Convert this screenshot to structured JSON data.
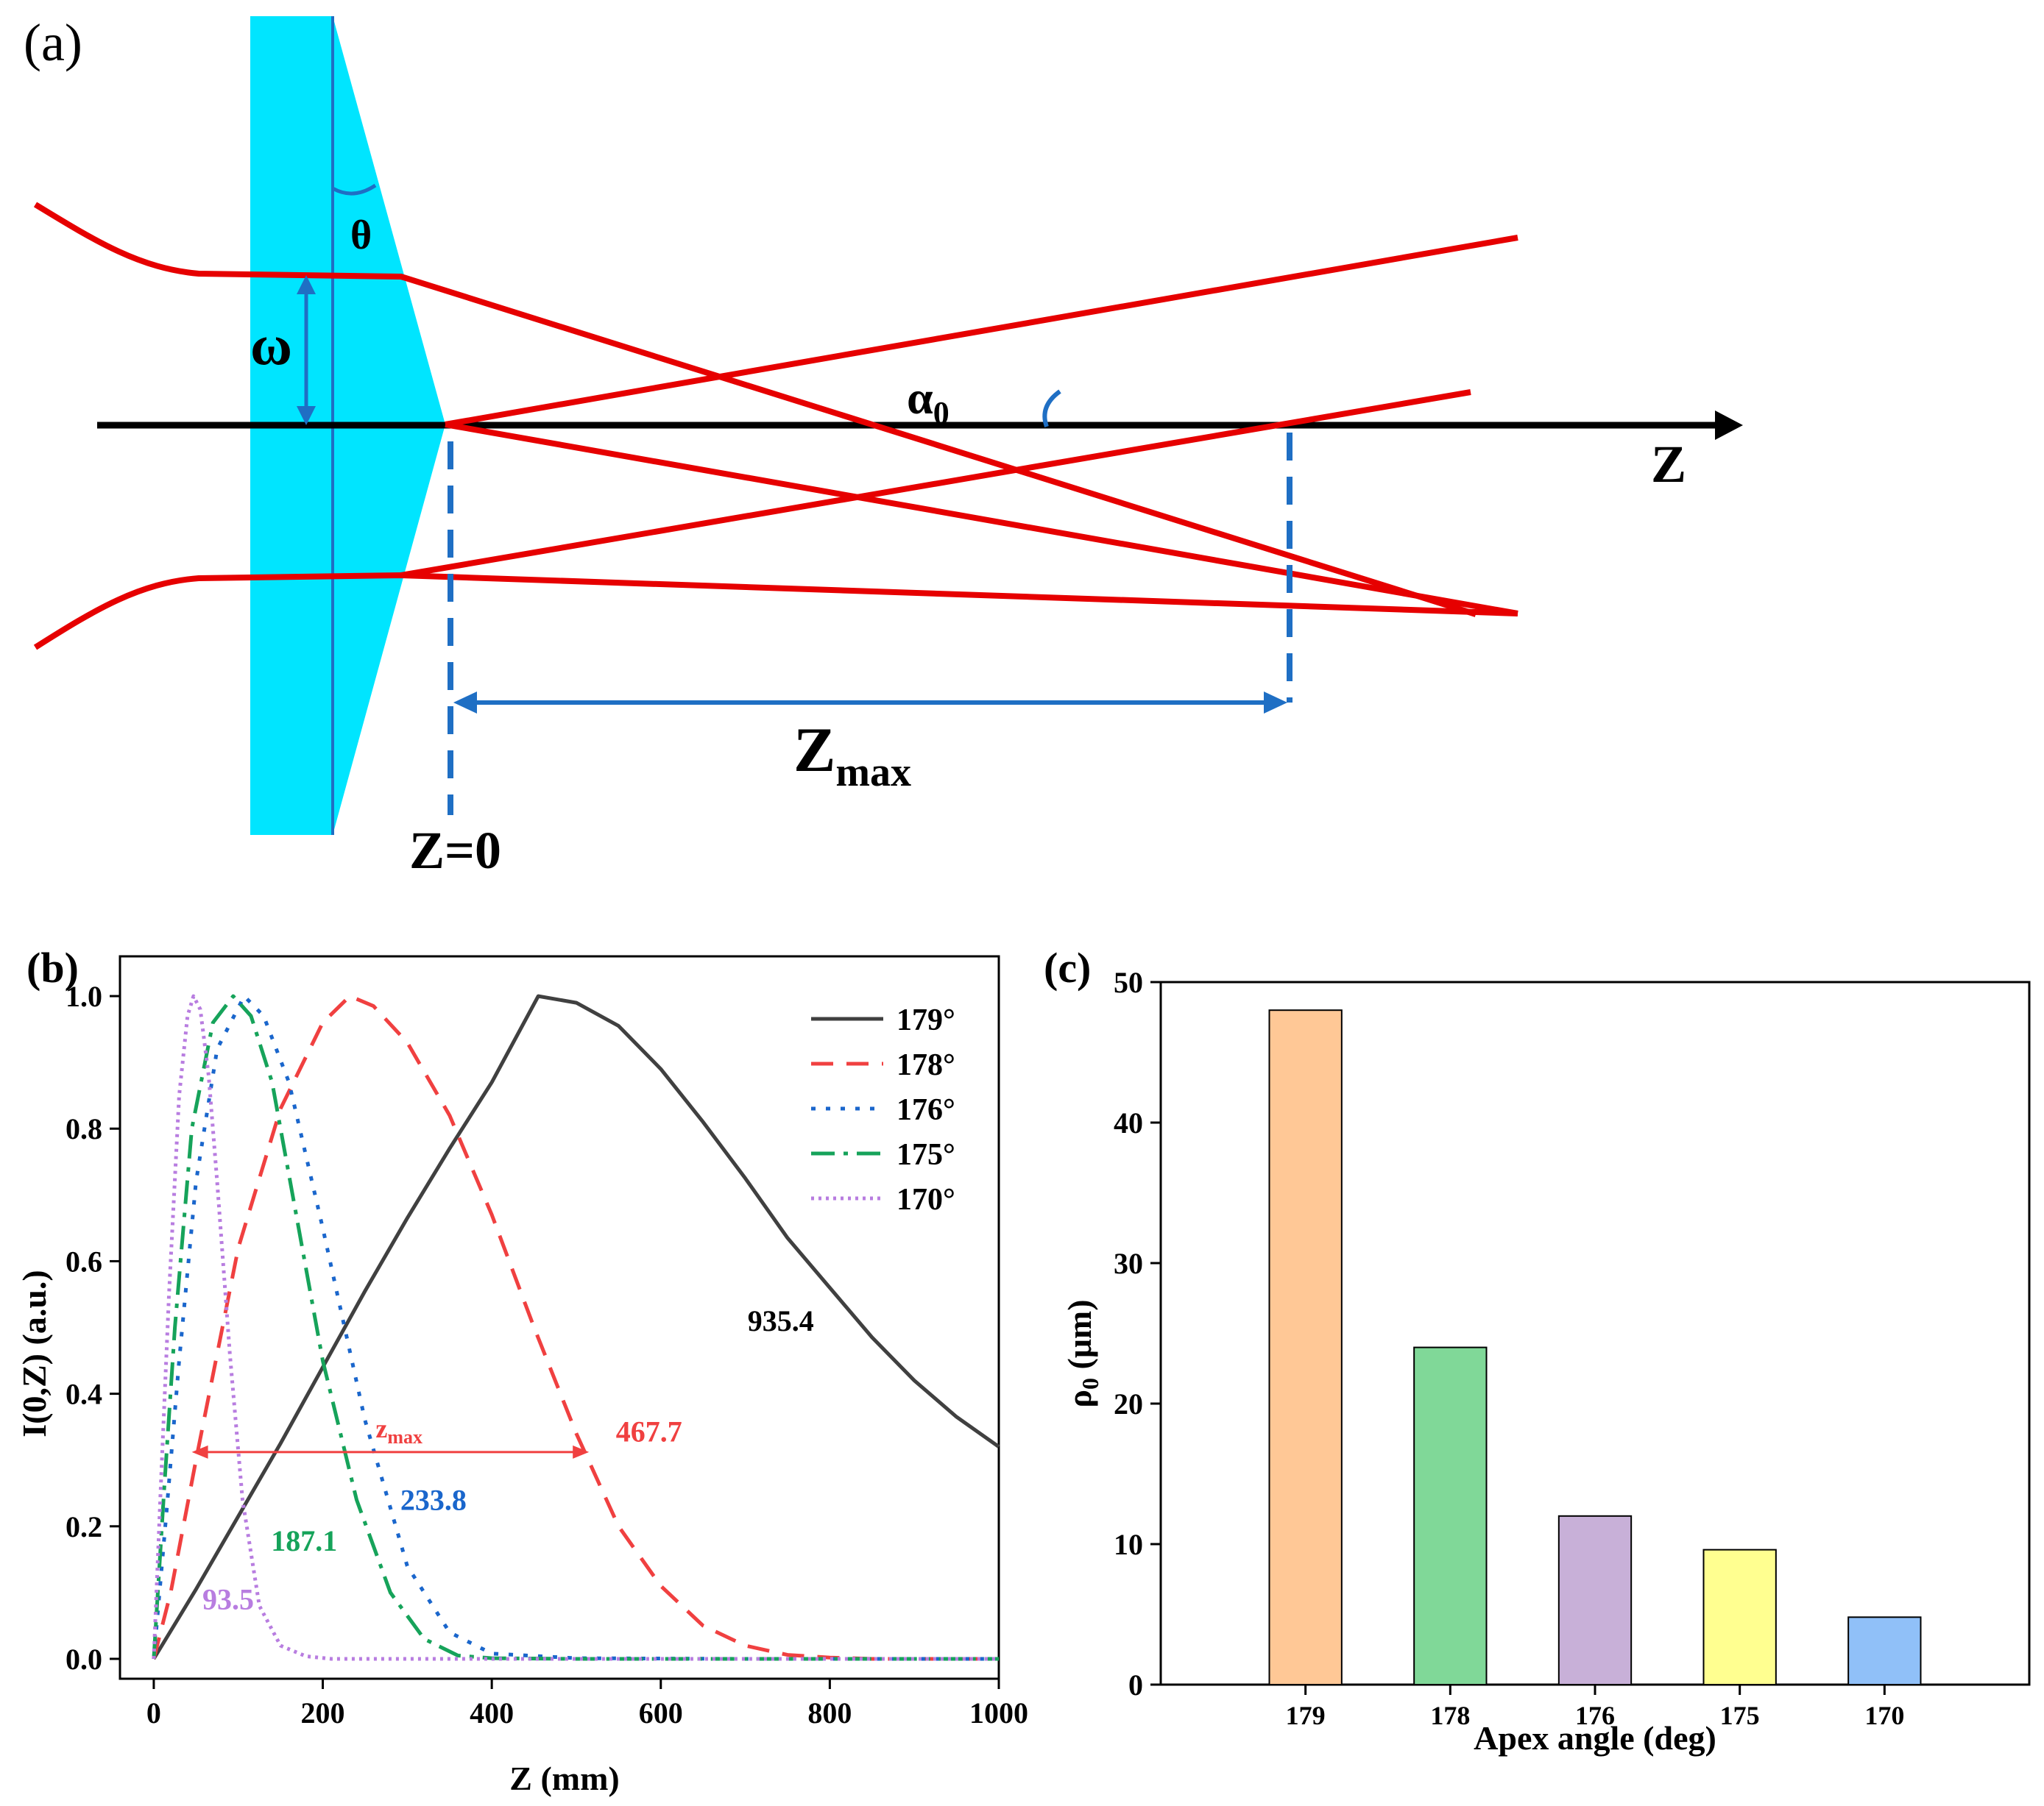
{
  "panel_a": {
    "label": "(a)",
    "theta_label": "θ",
    "omega_label": "ω",
    "alpha_label": "α",
    "alpha_sub": "0",
    "axis_label": "Z",
    "z0_label": "Z=0",
    "zmax_label": "Z",
    "zmax_sub": "max",
    "colors": {
      "axicon": "#00e5ff",
      "beam": "#e60000",
      "annotation": "#1f6fc4",
      "axis": "#000000"
    }
  },
  "chart_data": [
    {
      "id": "b",
      "panel_label": "(b)",
      "type": "line",
      "title": "",
      "xlabel": "Z (mm)",
      "ylabel": "I(0,Z) (a.u.)",
      "xlim": [
        -40,
        1000
      ],
      "ylim": [
        -0.03,
        1.06
      ],
      "xticks": [
        0,
        200,
        400,
        600,
        800,
        1000
      ],
      "xtick_labels": [
        "0",
        "200",
        "400",
        "600",
        "800",
        "1000"
      ],
      "yticks": [
        0.0,
        0.2,
        0.4,
        0.6,
        0.8,
        1.0
      ],
      "ytick_labels": [
        "0.0",
        "0.2",
        "0.4",
        "0.6",
        "0.8",
        "1.0"
      ],
      "legend_position": "top-right",
      "series": [
        {
          "name": "179°",
          "color": "#404040",
          "dash": "solid",
          "zmax": 935.4,
          "peak": 455,
          "x": [
            0,
            50,
            100,
            150,
            200,
            250,
            300,
            350,
            400,
            455,
            500,
            550,
            600,
            650,
            700,
            750,
            800,
            850,
            900,
            950,
            1000
          ],
          "values": [
            0,
            0.105,
            0.215,
            0.325,
            0.44,
            0.555,
            0.665,
            0.77,
            0.87,
            1.0,
            0.99,
            0.955,
            0.89,
            0.81,
            0.725,
            0.635,
            0.56,
            0.485,
            0.42,
            0.365,
            0.32
          ]
        },
        {
          "name": "178°",
          "color": "#f04040",
          "dash": "dash",
          "zmax": 467.7,
          "peak": 232,
          "x": [
            0,
            20,
            50,
            100,
            150,
            200,
            232,
            260,
            300,
            350,
            400,
            450,
            500,
            550,
            600,
            650,
            700,
            750,
            800,
            850,
            900,
            1000
          ],
          "values": [
            0,
            0.1,
            0.3,
            0.62,
            0.83,
            0.96,
            1.0,
            0.985,
            0.93,
            0.82,
            0.67,
            0.5,
            0.34,
            0.2,
            0.11,
            0.05,
            0.02,
            0.006,
            0.002,
            0.0,
            0.0,
            0.0
          ]
        },
        {
          "name": "176°",
          "color": "#1a66cc",
          "dash": "dot",
          "zmax": 233.8,
          "peak": 107,
          "x": [
            0,
            15,
            30,
            50,
            75,
            107,
            130,
            160,
            200,
            250,
            300,
            350,
            400,
            500,
            700,
            1000
          ],
          "values": [
            0,
            0.22,
            0.45,
            0.72,
            0.92,
            1.0,
            0.97,
            0.87,
            0.65,
            0.36,
            0.14,
            0.04,
            0.008,
            0.001,
            0.0,
            0.0
          ]
        },
        {
          "name": "175°",
          "color": "#16a35a",
          "dash": "dashdot",
          "zmax": 187.1,
          "peak": 94,
          "x": [
            0,
            12,
            25,
            45,
            70,
            94,
            115,
            140,
            170,
            200,
            240,
            280,
            320,
            360,
            400,
            500,
            700,
            1000
          ],
          "values": [
            0,
            0.25,
            0.5,
            0.8,
            0.96,
            1.0,
            0.97,
            0.87,
            0.66,
            0.45,
            0.24,
            0.1,
            0.03,
            0.005,
            0.001,
            0.0,
            0.0,
            0.0
          ]
        },
        {
          "name": "170°",
          "color": "#b87de0",
          "dash": "shortdot",
          "zmax": 93.5,
          "peak": 47,
          "x": [
            0,
            8,
            18,
            30,
            40,
            47,
            55,
            65,
            75,
            90,
            105,
            125,
            150,
            180,
            210,
            260,
            400,
            1000
          ],
          "values": [
            0,
            0.25,
            0.55,
            0.85,
            0.97,
            1.0,
            0.98,
            0.88,
            0.72,
            0.46,
            0.24,
            0.08,
            0.02,
            0.004,
            0.0,
            0.0,
            0.0,
            0.0
          ]
        }
      ],
      "annotations": [
        {
          "text": "935.4",
          "x": 742,
          "y": 0.495,
          "color": "#000000"
        },
        {
          "text": "467.7",
          "x": 586,
          "y": 0.328,
          "color": "#f04040"
        },
        {
          "text": "233.8",
          "x": 331,
          "y": 0.225,
          "color": "#1a66cc"
        },
        {
          "text": "187.1",
          "x": 178,
          "y": 0.163,
          "color": "#16a35a"
        },
        {
          "text": "93.5",
          "x": 88,
          "y": 0.075,
          "color": "#b87de0"
        }
      ],
      "zmax_arrow": {
        "label": "z",
        "label_sub": "max",
        "x_start": 45,
        "x_end": 515,
        "y": 0.312,
        "color": "#f04040"
      }
    },
    {
      "id": "c",
      "panel_label": "(c)",
      "type": "bar",
      "title": "",
      "xlabel": "Apex angle (deg)",
      "ylabel": "ρ",
      "ylabel_sub": "0",
      "ylabel_unit": " (μm)",
      "ylim": [
        0,
        50
      ],
      "yticks": [
        0,
        10,
        20,
        30,
        40,
        50
      ],
      "ytick_labels": [
        "0",
        "10",
        "20",
        "30",
        "40",
        "50"
      ],
      "categories": [
        "179",
        "178",
        "176",
        "175",
        "170"
      ],
      "values": [
        48.0,
        24.0,
        12.0,
        9.6,
        4.8
      ],
      "colors": [
        "#ffc896",
        "#80d898",
        "#c8b0d8",
        "#ffff90",
        "#90c0f8"
      ]
    }
  ]
}
